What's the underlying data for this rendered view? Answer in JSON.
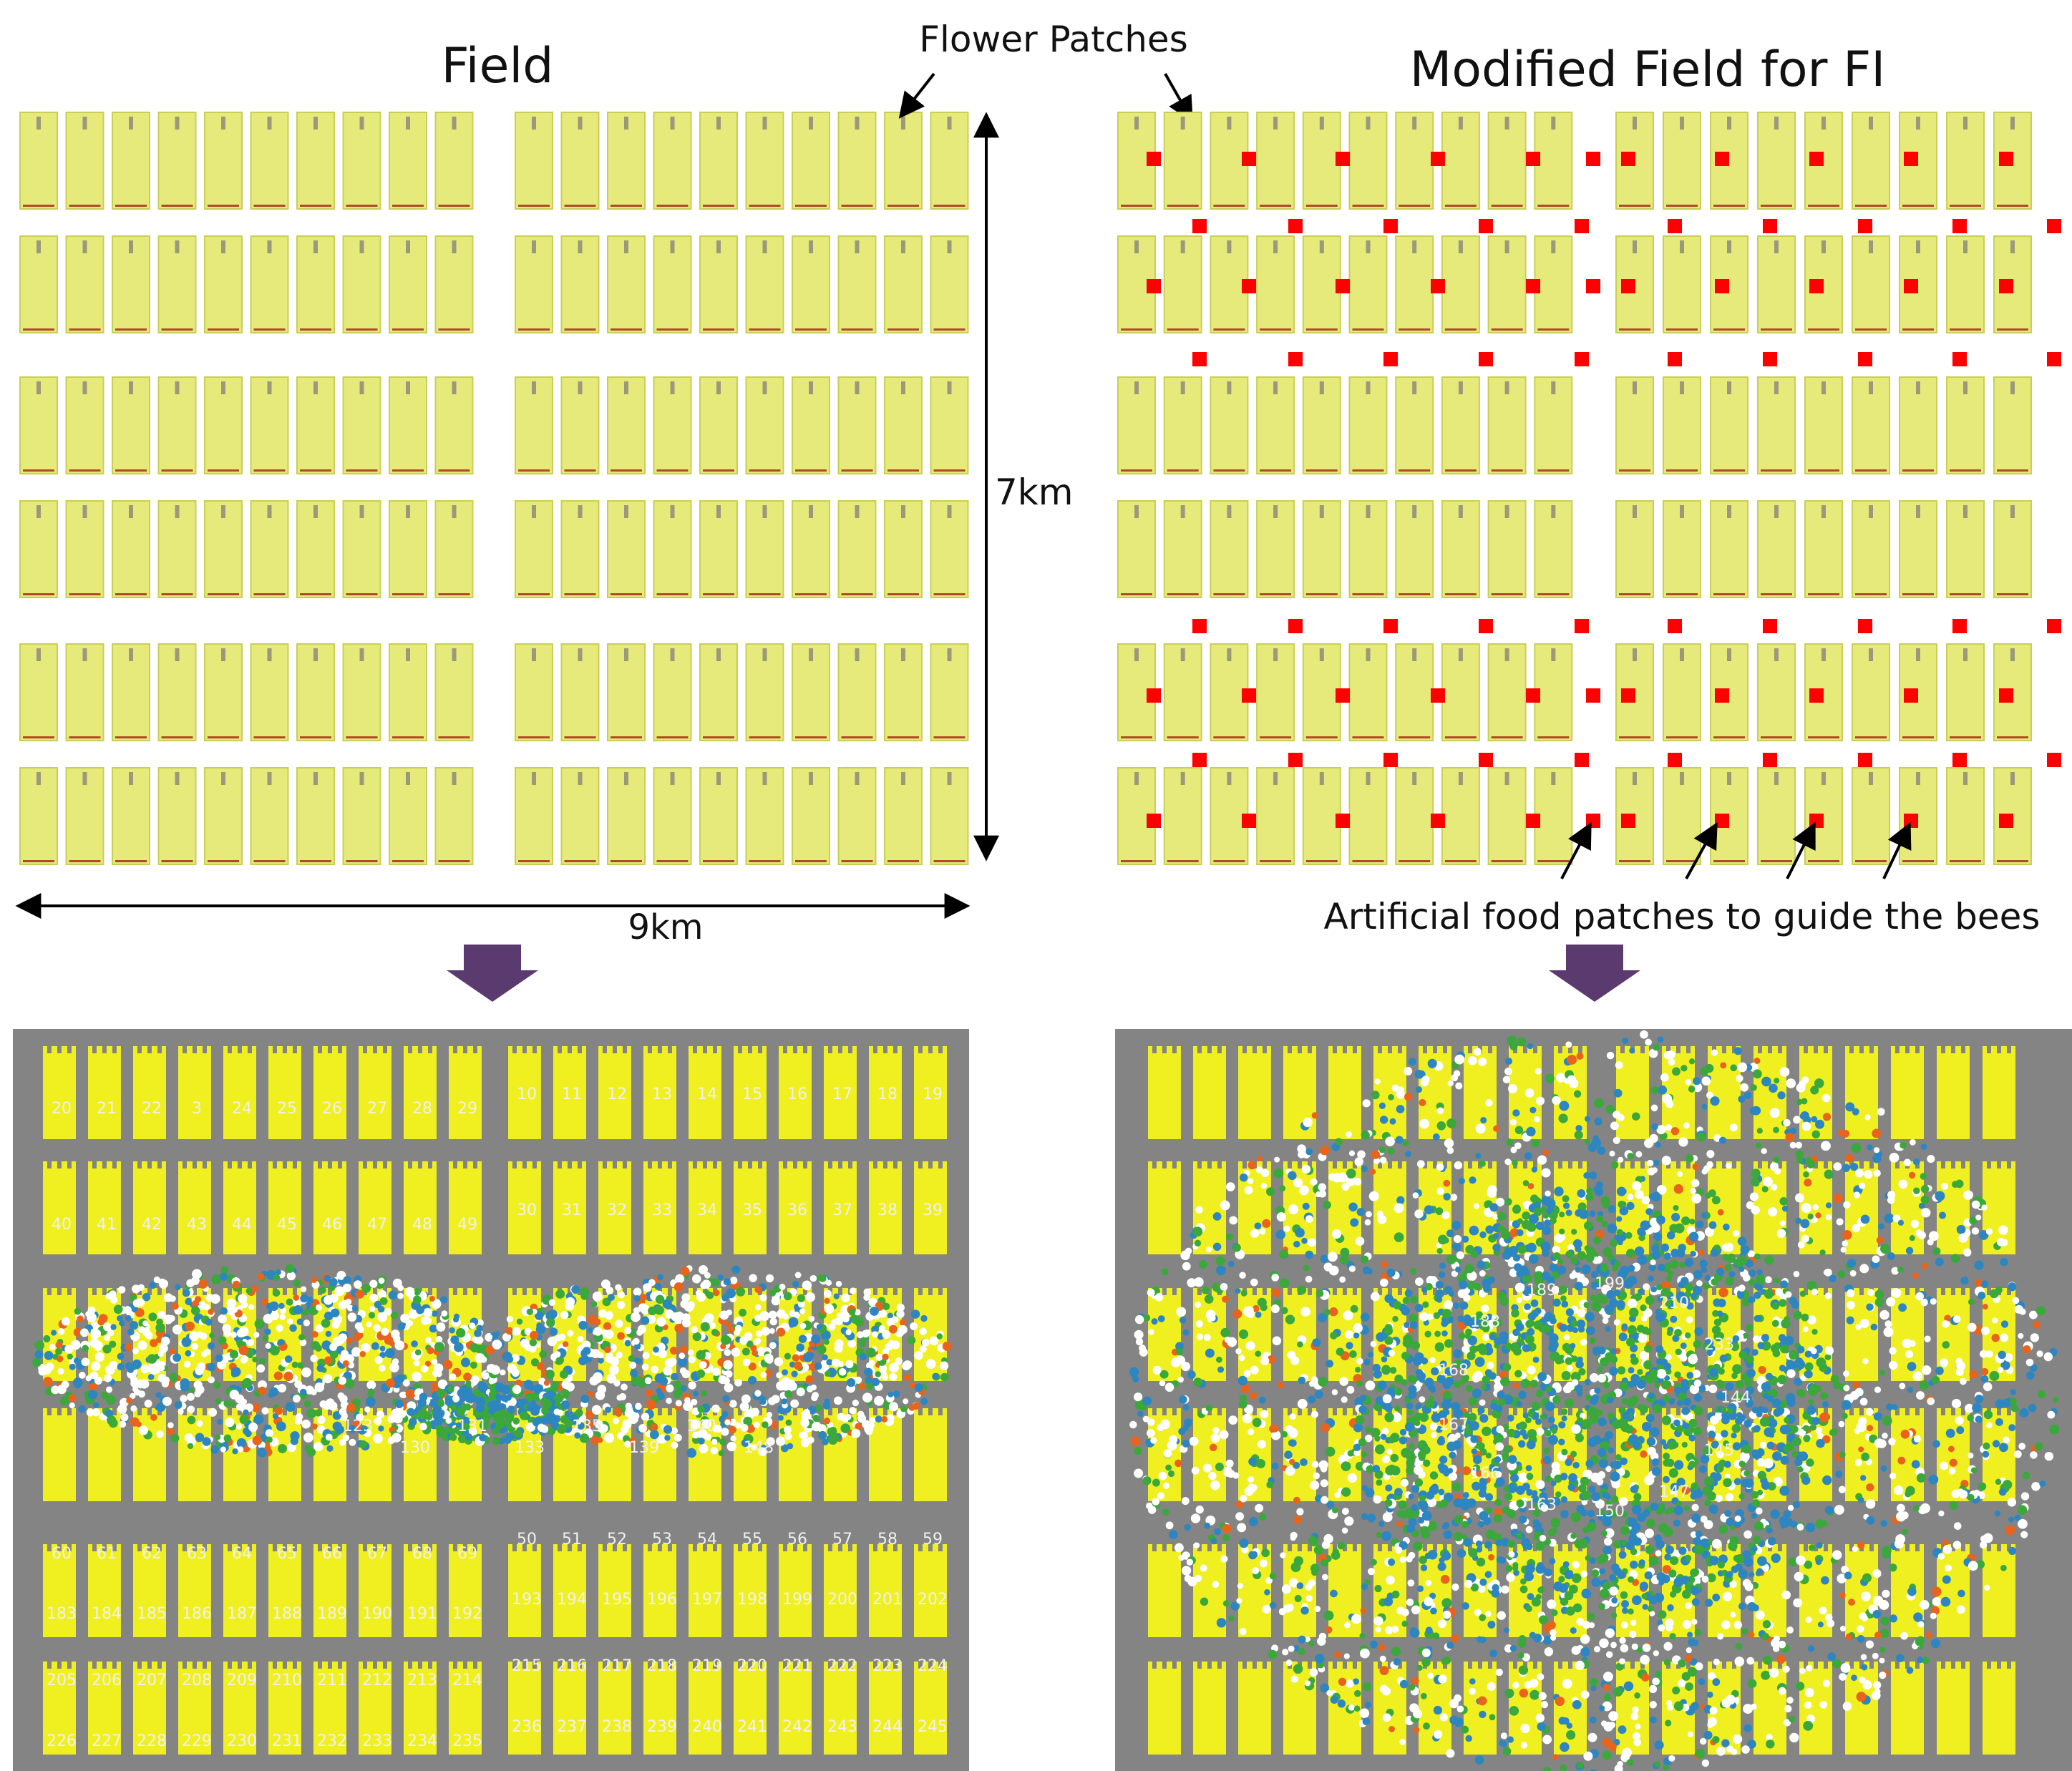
{
  "panels": {
    "field": {
      "title": "Field",
      "height_label": "7km",
      "width_label": "9km"
    },
    "modified": {
      "title": "Modified Field for FI",
      "annotation": "Artificial food patches to guide the bees"
    },
    "flower_label": "Flower Patches"
  },
  "colors": {
    "patch_fill": "#e6ea7a",
    "patch_edge": "#c9cf55",
    "sim_background": "#848484",
    "sim_patch": "#f0f020",
    "artificial_patch": "#ff0000",
    "transition_arrow": "#5b3a70",
    "bee_colors": [
      "#ffffff",
      "#2e86c1",
      "#3aa83a",
      "#e8641c"
    ]
  },
  "icons": {
    "transition_arrow": "down-arrow-icon",
    "dimension_arrow": "double-arrow-icon"
  },
  "sim_left": {
    "row_numbers": [
      [
        "20",
        "21",
        "22",
        "3",
        "24",
        "25",
        "26",
        "27",
        "28",
        "29"
      ],
      [
        "40",
        "41",
        "42",
        "43",
        "44",
        "45",
        "46",
        "47",
        "48",
        "49"
      ],
      [
        "60",
        "61",
        "62",
        "63",
        "64",
        "65",
        "66",
        "67",
        "68",
        "69"
      ],
      [
        "183",
        "184",
        "185",
        "186",
        "187",
        "188",
        "189",
        "190",
        "191",
        "192"
      ],
      [
        "205",
        "206",
        "207",
        "208",
        "209",
        "210",
        "211",
        "212",
        "213",
        "214"
      ],
      [
        "226",
        "227",
        "228",
        "229",
        "230",
        "231",
        "232",
        "233",
        "234",
        "235"
      ]
    ],
    "row_numbers_right": [
      [
        "10",
        "11",
        "12",
        "13",
        "14",
        "15",
        "16",
        "17",
        "18",
        "19"
      ],
      [
        "30",
        "31",
        "32",
        "33",
        "34",
        "35",
        "36",
        "37",
        "38",
        "39"
      ],
      [
        "50",
        "51",
        "52",
        "53",
        "54",
        "55",
        "56",
        "57",
        "58",
        "59"
      ],
      [
        "193",
        "194",
        "195",
        "196",
        "197",
        "198",
        "199",
        "200",
        "201",
        "202"
      ],
      [
        "215",
        "216",
        "217",
        "218",
        "219",
        "220",
        "221",
        "222",
        "223",
        "224"
      ],
      [
        "236",
        "237",
        "238",
        "239",
        "240",
        "241",
        "242",
        "243",
        "244",
        "245"
      ]
    ],
    "cluster_numbers": [
      "123",
      "130",
      "131",
      "133",
      "135",
      "139",
      "140",
      "148"
    ]
  },
  "sim_right": {
    "cluster_numbers": [
      "144",
      "145",
      "147",
      "150",
      "163",
      "166",
      "167",
      "168",
      "188",
      "189",
      "199",
      "210",
      "233"
    ]
  }
}
